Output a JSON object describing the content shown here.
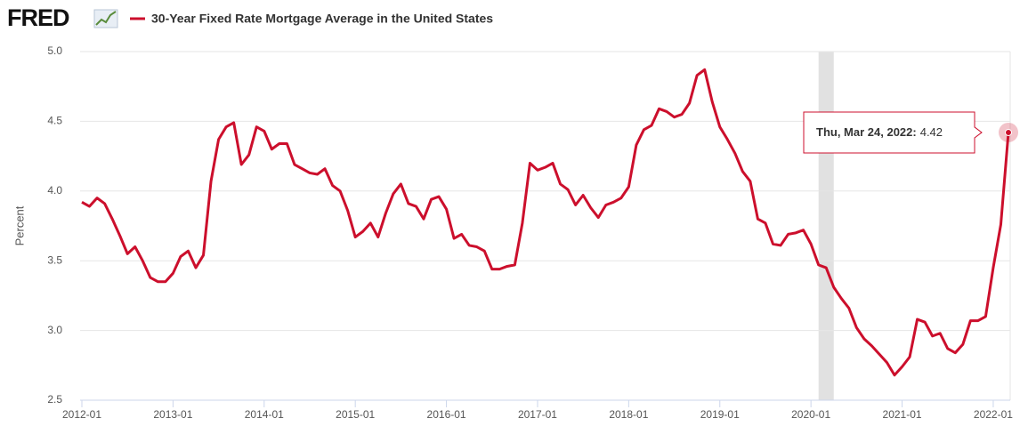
{
  "chart_data": {
    "type": "line",
    "logo": "FRED",
    "title": "30-Year Fixed Rate Mortgage Average in the United States",
    "y_label": "Percent",
    "color": "#cc0f2c",
    "grid": true,
    "x": [
      "2012-01",
      "2012-02",
      "2012-03",
      "2012-04",
      "2012-05",
      "2012-06",
      "2012-07",
      "2012-08",
      "2012-09",
      "2012-10",
      "2012-11",
      "2012-12",
      "2013-01",
      "2013-02",
      "2013-03",
      "2013-04",
      "2013-05",
      "2013-06",
      "2013-07",
      "2013-08",
      "2013-09",
      "2013-10",
      "2013-11",
      "2013-12",
      "2014-01",
      "2014-02",
      "2014-03",
      "2014-04",
      "2014-05",
      "2014-06",
      "2014-07",
      "2014-08",
      "2014-09",
      "2014-10",
      "2014-11",
      "2014-12",
      "2015-01",
      "2015-02",
      "2015-03",
      "2015-04",
      "2015-05",
      "2015-06",
      "2015-07",
      "2015-08",
      "2015-09",
      "2015-10",
      "2015-11",
      "2015-12",
      "2016-01",
      "2016-02",
      "2016-03",
      "2016-04",
      "2016-05",
      "2016-06",
      "2016-07",
      "2016-08",
      "2016-09",
      "2016-10",
      "2016-11",
      "2016-12",
      "2017-01",
      "2017-02",
      "2017-03",
      "2017-04",
      "2017-05",
      "2017-06",
      "2017-07",
      "2017-08",
      "2017-09",
      "2017-10",
      "2017-11",
      "2017-12",
      "2018-01",
      "2018-02",
      "2018-03",
      "2018-04",
      "2018-05",
      "2018-06",
      "2018-07",
      "2018-08",
      "2018-09",
      "2018-10",
      "2018-11",
      "2018-12",
      "2019-01",
      "2019-02",
      "2019-03",
      "2019-04",
      "2019-05",
      "2019-06",
      "2019-07",
      "2019-08",
      "2019-09",
      "2019-10",
      "2019-11",
      "2019-12",
      "2020-01",
      "2020-02",
      "2020-03",
      "2020-04",
      "2020-05",
      "2020-06",
      "2020-07",
      "2020-08",
      "2020-09",
      "2020-10",
      "2020-11",
      "2020-12",
      "2021-01",
      "2021-02",
      "2021-03",
      "2021-04",
      "2021-05",
      "2021-06",
      "2021-07",
      "2021-08",
      "2021-09",
      "2021-10",
      "2021-11",
      "2021-12",
      "2022-01",
      "2022-02",
      "2022-03"
    ],
    "values": [
      3.92,
      3.89,
      3.95,
      3.91,
      3.8,
      3.68,
      3.55,
      3.6,
      3.5,
      3.38,
      3.35,
      3.35,
      3.41,
      3.53,
      3.57,
      3.45,
      3.54,
      4.07,
      4.37,
      4.46,
      4.49,
      4.19,
      4.26,
      4.46,
      4.43,
      4.3,
      4.34,
      4.34,
      4.19,
      4.16,
      4.13,
      4.12,
      4.16,
      4.04,
      4.0,
      3.86,
      3.67,
      3.71,
      3.77,
      3.67,
      3.84,
      3.98,
      4.05,
      3.91,
      3.89,
      3.8,
      3.94,
      3.96,
      3.87,
      3.66,
      3.69,
      3.61,
      3.6,
      3.57,
      3.44,
      3.44,
      3.46,
      3.47,
      3.77,
      4.2,
      4.15,
      4.17,
      4.2,
      4.05,
      4.01,
      3.9,
      3.97,
      3.88,
      3.81,
      3.9,
      3.92,
      3.95,
      4.03,
      4.33,
      4.44,
      4.47,
      4.59,
      4.57,
      4.53,
      4.55,
      4.63,
      4.83,
      4.87,
      4.64,
      4.46,
      4.37,
      4.27,
      4.14,
      4.07,
      3.8,
      3.77,
      3.62,
      3.61,
      3.69,
      3.7,
      3.72,
      3.62,
      3.47,
      3.45,
      3.31,
      3.23,
      3.16,
      3.02,
      2.94,
      2.89,
      2.83,
      2.77,
      2.68,
      2.74,
      2.81,
      3.08,
      3.06,
      2.96,
      2.98,
      2.87,
      2.84,
      2.9,
      3.07,
      3.07,
      3.1,
      3.45,
      3.76,
      4.42
    ],
    "xlim": [
      "2012-01",
      "2022-03"
    ],
    "xticks": [
      "2012-01",
      "2013-01",
      "2014-01",
      "2015-01",
      "2016-01",
      "2017-01",
      "2018-01",
      "2019-01",
      "2020-01",
      "2021-01",
      "2022-01"
    ],
    "ylim": [
      2.5,
      5
    ],
    "yticks": [
      2.5,
      {
        "value": 3,
        "label": "3.0"
      },
      3.5,
      {
        "value": 4,
        "label": "4.0"
      },
      4.5,
      {
        "value": 5,
        "label": "5.0"
      }
    ],
    "shaded_periods": [
      {
        "start": "2020-02",
        "end": "2020-04"
      }
    ],
    "tooltip": {
      "label": "Thu, Mar 24, 2022:"
    }
  }
}
